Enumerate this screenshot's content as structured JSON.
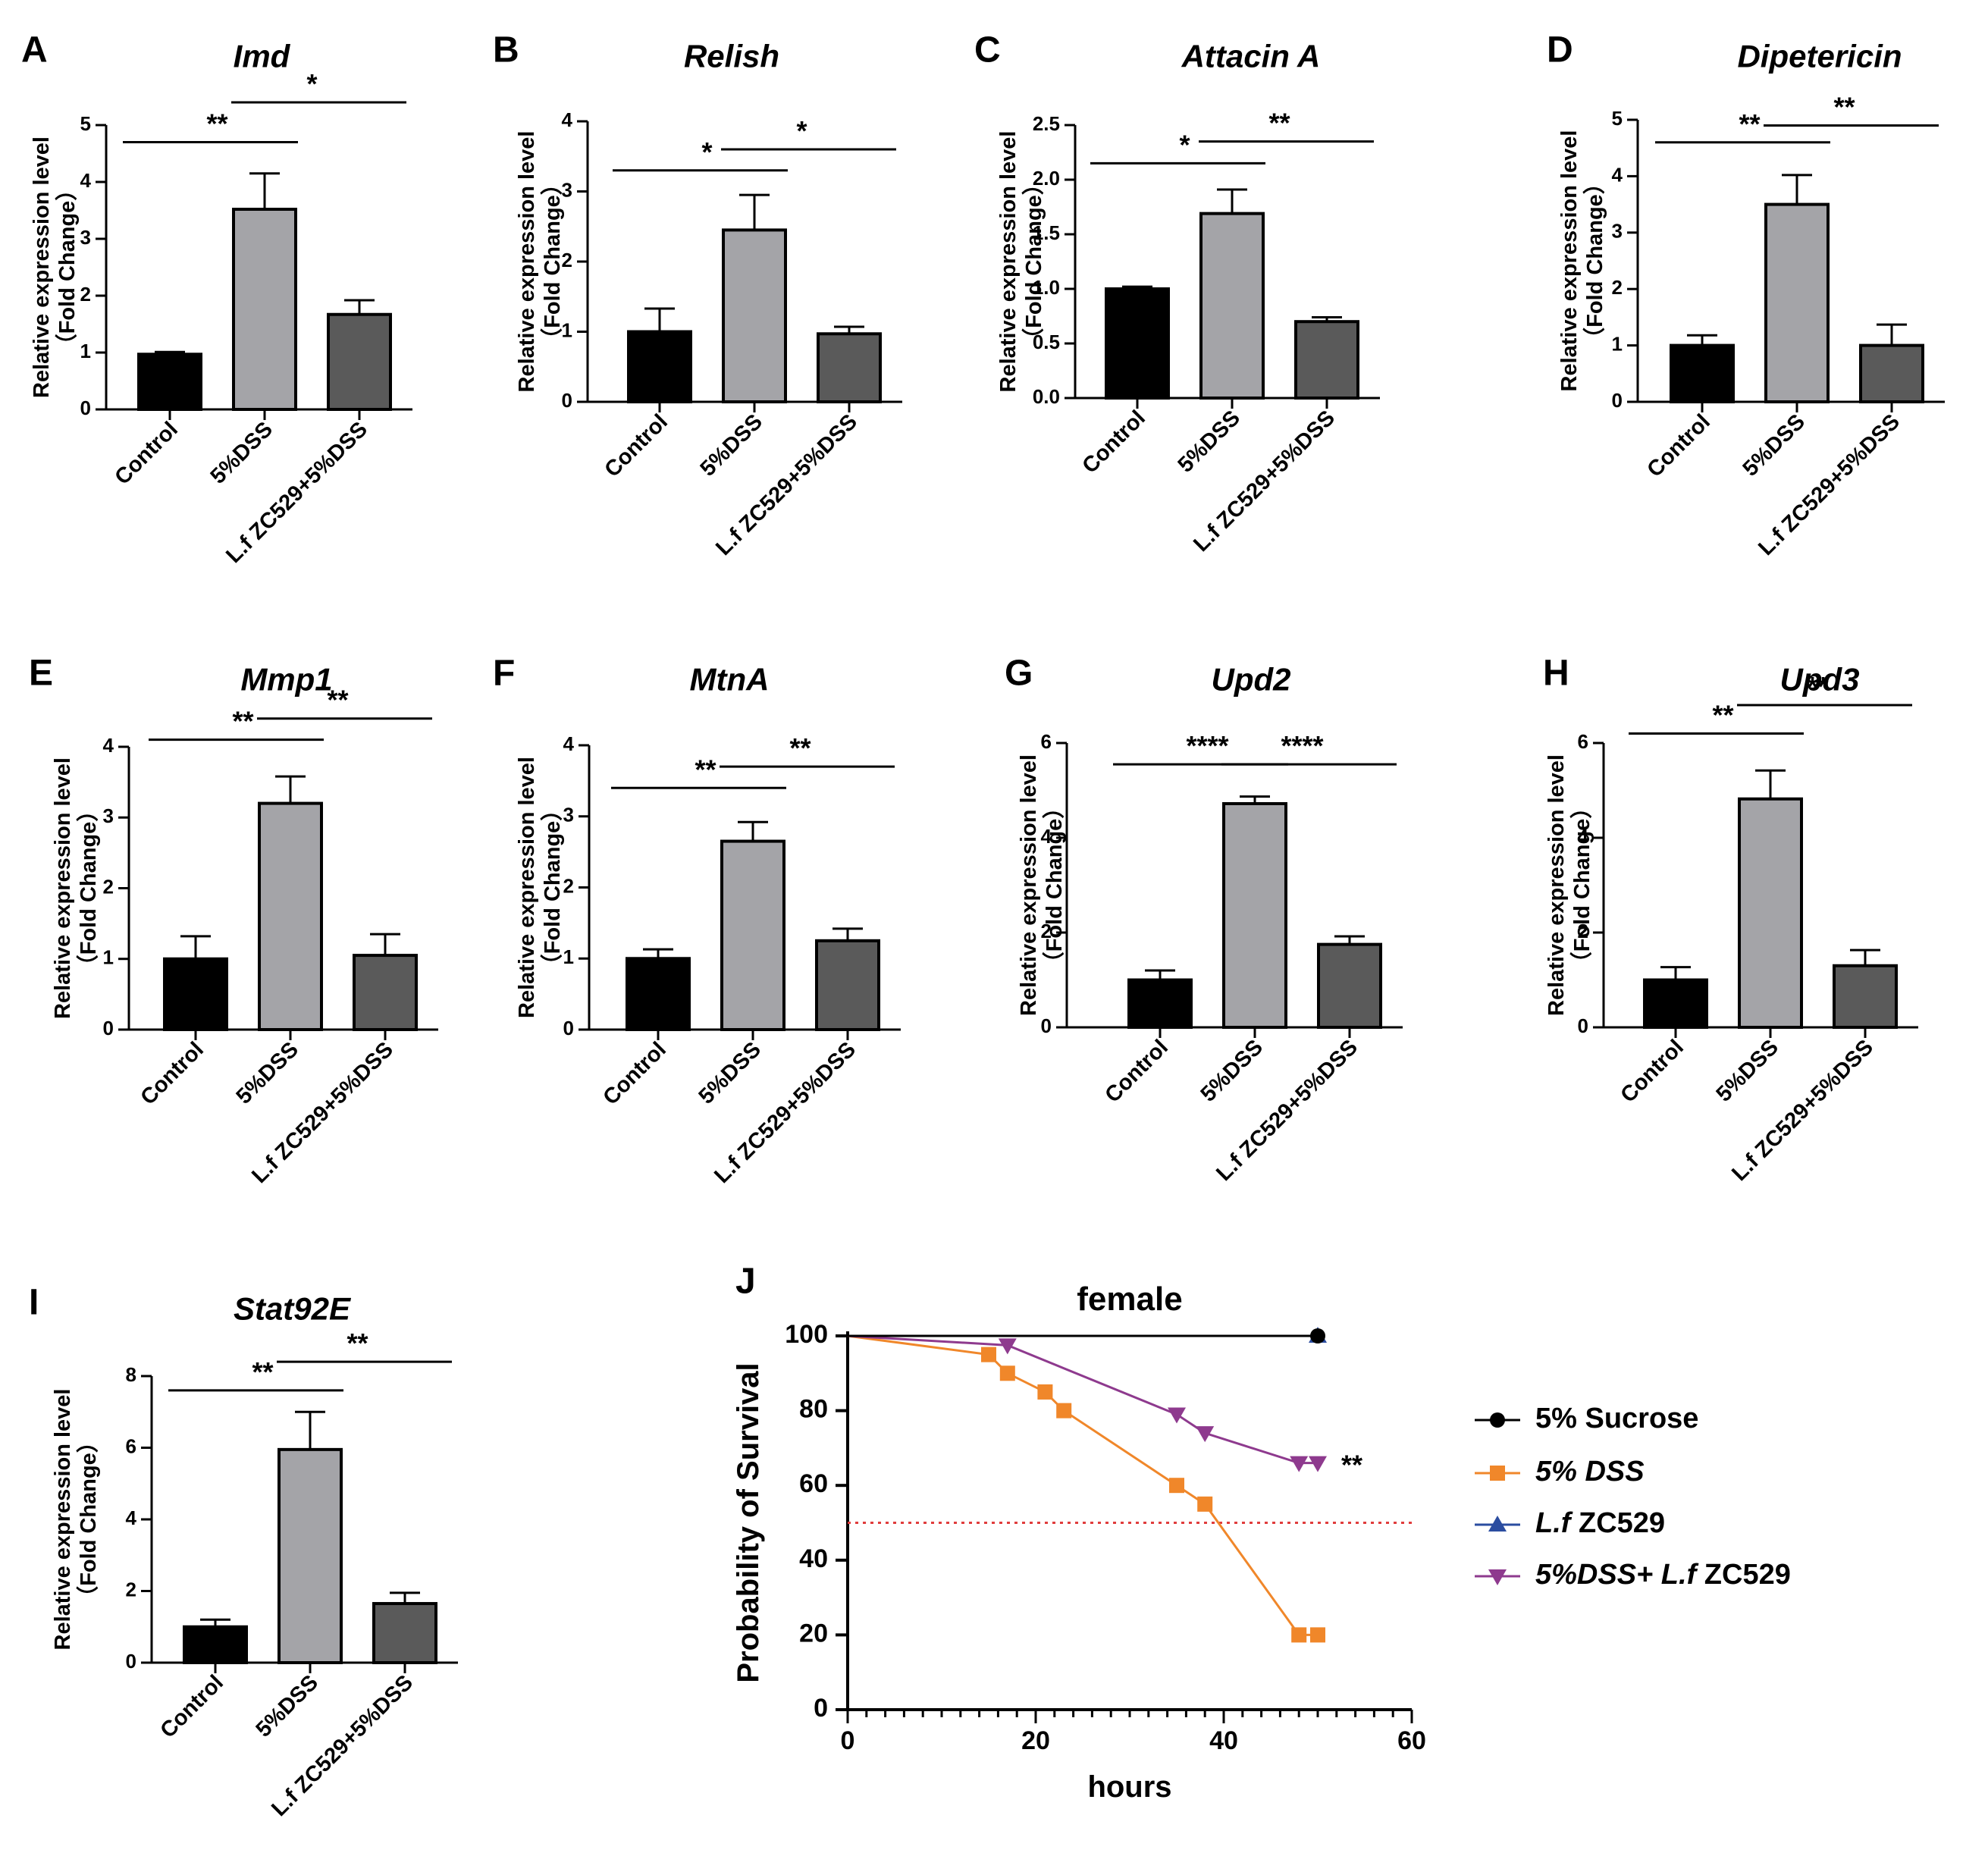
{
  "colors": {
    "control": "#000000",
    "dss": "#a4a4a8",
    "lf_dss": "#5a5a5a",
    "sucrose": "#000000",
    "dss_line": "#f0872a",
    "lf_line": "#2b4da0",
    "lf_dss_line": "#8e3a8e",
    "median": "#e03c3c"
  },
  "chart_data": [
    {
      "type": "bar",
      "panel": "A",
      "title": "Imd",
      "ylabel_line1": "Relative expression level",
      "ylabel_line2": "（Fold Change）",
      "categories": [
        "Control",
        "5%DSS",
        "L.f ZC529+5%DSS"
      ],
      "values": [
        0.97,
        3.52,
        1.67
      ],
      "errors": [
        0.04,
        0.63,
        0.25
      ],
      "ylim": [
        0,
        5
      ],
      "yticks": [
        "0",
        "1",
        "2",
        "3",
        "4",
        "5"
      ],
      "significance": [
        {
          "from": 0,
          "to": 1,
          "label": "**",
          "y": 4.7
        },
        {
          "from": 1,
          "to": 2,
          "label": "*",
          "y": 5.4
        }
      ]
    },
    {
      "type": "bar",
      "panel": "B",
      "title": "Relish",
      "ylabel_line1": "Relative expression level",
      "ylabel_line2": "（Fold Change）",
      "categories": [
        "Control",
        "5%DSS",
        "L.f ZC529+5%DSS"
      ],
      "values": [
        1.0,
        2.45,
        0.97
      ],
      "errors": [
        0.33,
        0.5,
        0.1
      ],
      "ylim": [
        0,
        4
      ],
      "yticks": [
        "0",
        "1",
        "2",
        "3",
        "4"
      ],
      "significance": [
        {
          "from": 0,
          "to": 1,
          "label": "*",
          "y": 3.3
        },
        {
          "from": 1,
          "to": 2,
          "label": "*",
          "y": 3.6
        }
      ]
    },
    {
      "type": "bar",
      "panel": "C",
      "title": "Attacin A",
      "ylabel_line1": "Relative expression level",
      "ylabel_line2": "（Fold Change）",
      "categories": [
        "Control",
        "5%DSS",
        "L.f ZC529+5%DSS"
      ],
      "values": [
        1.0,
        1.69,
        0.7
      ],
      "errors": [
        0.02,
        0.22,
        0.04
      ],
      "ylim": [
        0,
        2.5
      ],
      "yticks": [
        "0.0",
        "0.5",
        "1.0",
        "1.5",
        "2.0",
        "2.5"
      ],
      "significance": [
        {
          "from": 0,
          "to": 1,
          "label": "*",
          "y": 2.15
        },
        {
          "from": 1,
          "to": 2,
          "label": "**",
          "y": 2.35
        }
      ]
    },
    {
      "type": "bar",
      "panel": "D",
      "title": "Dipetericin",
      "ylabel_line1": "Relative expression level",
      "ylabel_line2": "（Fold Change）",
      "categories": [
        "Control",
        "5%DSS",
        "L.f ZC529+5%DSS"
      ],
      "values": [
        1.0,
        3.5,
        1.0
      ],
      "errors": [
        0.18,
        0.52,
        0.37
      ],
      "ylim": [
        0,
        5
      ],
      "yticks": [
        "0",
        "1",
        "2",
        "3",
        "4",
        "5"
      ],
      "significance": [
        {
          "from": 0,
          "to": 1,
          "label": "**",
          "y": 4.6
        },
        {
          "from": 1,
          "to": 2,
          "label": "**",
          "y": 4.9
        }
      ]
    },
    {
      "type": "bar",
      "panel": "E",
      "title": "Mmp1",
      "ylabel_line1": "Relative expression level",
      "ylabel_line2": "（Fold Change）",
      "categories": [
        "Control",
        "5%DSS",
        "L.f ZC529+5%DSS"
      ],
      "values": [
        1.0,
        3.2,
        1.05
      ],
      "errors": [
        0.32,
        0.38,
        0.3
      ],
      "ylim": [
        0,
        4
      ],
      "yticks": [
        "0",
        "1",
        "2",
        "3",
        "4"
      ],
      "significance": [
        {
          "from": 0,
          "to": 1,
          "label": "**",
          "y": 4.1
        },
        {
          "from": 1,
          "to": 2,
          "label": "**",
          "y": 4.4
        }
      ]
    },
    {
      "type": "bar",
      "panel": "F",
      "title": "MtnA",
      "ylabel_line1": "Relative expression level",
      "ylabel_line2": "（Fold Change）",
      "categories": [
        "Control",
        "5%DSS",
        "L.f ZC529+5%DSS"
      ],
      "values": [
        1.0,
        2.65,
        1.25
      ],
      "errors": [
        0.13,
        0.27,
        0.17
      ],
      "ylim": [
        0,
        4
      ],
      "yticks": [
        "0",
        "1",
        "2",
        "3",
        "4"
      ],
      "significance": [
        {
          "from": 0,
          "to": 1,
          "label": "**",
          "y": 3.4
        },
        {
          "from": 1,
          "to": 2,
          "label": "**",
          "y": 3.7
        }
      ]
    },
    {
      "type": "bar",
      "panel": "G",
      "title": "Upd2",
      "ylabel_line1": "Relative expression level",
      "ylabel_line2": "（Fold Change）",
      "categories": [
        "Control",
        "5%DSS",
        "L.f ZC529+5%DSS"
      ],
      "values": [
        1.0,
        4.72,
        1.75
      ],
      "errors": [
        0.2,
        0.15,
        0.17
      ],
      "ylim": [
        0,
        6
      ],
      "yticks": [
        "0",
        "2",
        "4",
        "6"
      ],
      "significance": [
        {
          "from": 0,
          "to": 1,
          "label": "****",
          "y": 5.55
        },
        {
          "from": 1,
          "to": 2,
          "label": "****",
          "y": 5.55
        }
      ]
    },
    {
      "type": "bar",
      "panel": "H",
      "title": "Upd3",
      "ylabel_line1": "Relative expression level",
      "ylabel_line2": "（Fold Change）",
      "categories": [
        "Control",
        "5%DSS",
        "L.f ZC529+5%DSS"
      ],
      "values": [
        1.0,
        4.82,
        1.3
      ],
      "errors": [
        0.27,
        0.6,
        0.33
      ],
      "ylim": [
        0,
        6
      ],
      "yticks": [
        "0",
        "2",
        "4",
        "6"
      ],
      "significance": [
        {
          "from": 0,
          "to": 1,
          "label": "**",
          "y": 6.2
        },
        {
          "from": 1,
          "to": 2,
          "label": "**",
          "y": 6.8
        }
      ]
    },
    {
      "type": "bar",
      "panel": "I",
      "title": "Stat92E",
      "ylabel_line1": "Relative expression level",
      "ylabel_line2": "（Fold Change）",
      "categories": [
        "Control",
        "5%DSS",
        "L.f ZC529+5%DSS"
      ],
      "values": [
        1.0,
        5.95,
        1.65
      ],
      "errors": [
        0.2,
        1.05,
        0.3
      ],
      "ylim": [
        0,
        8
      ],
      "yticks": [
        "0",
        "2",
        "4",
        "6",
        "8"
      ],
      "significance": [
        {
          "from": 0,
          "to": 1,
          "label": "**",
          "y": 7.6
        },
        {
          "from": 1,
          "to": 2,
          "label": "**",
          "y": 8.4
        }
      ]
    },
    {
      "type": "line",
      "panel": "J",
      "title": "female",
      "xlabel": "hours",
      "ylabel": "Probability of Survival",
      "xlim": [
        0,
        60
      ],
      "ylim": [
        0,
        100
      ],
      "xticks": [
        "0",
        "20",
        "40",
        "60"
      ],
      "yticks": [
        "0",
        "20",
        "40",
        "60",
        "80",
        "100"
      ],
      "median_line": 50,
      "series": [
        {
          "name": "5% Sucrose",
          "key": "sucrose",
          "marker": "circle",
          "x": [
            0,
            50
          ],
          "y": [
            100,
            100
          ],
          "marked": [
            50
          ]
        },
        {
          "name": "5% DSS",
          "key": "dss_line",
          "marker": "square",
          "x": [
            0,
            15,
            17,
            21,
            23,
            35,
            38,
            48,
            50
          ],
          "y": [
            100,
            95,
            90,
            85,
            80,
            60,
            55,
            20,
            20
          ],
          "marked": [
            15,
            17,
            21,
            23,
            35,
            38,
            48,
            50
          ]
        },
        {
          "name": "L.f ZC529",
          "key": "lf_line",
          "marker": "triangle-up",
          "x": [
            0,
            50
          ],
          "y": [
            100,
            100
          ],
          "marked": [
            50
          ]
        },
        {
          "name": "5%DSS+ L.f ZC529",
          "key": "lf_dss_line",
          "marker": "triangle-down",
          "x": [
            0,
            17,
            35,
            38,
            48,
            50
          ],
          "y": [
            100,
            97.5,
            79,
            74,
            66,
            66
          ],
          "marked": [
            17,
            35,
            38,
            48,
            50
          ]
        }
      ],
      "annotation": "**",
      "legend": [
        {
          "italic": "",
          "plain": "5% Sucrose"
        },
        {
          "italic": "5% DSS",
          "plain": ""
        },
        {
          "italic": "L.f",
          "plain": " ZC529"
        },
        {
          "italic": "5%DSS+ L.f",
          "plain": " ZC529"
        }
      ]
    }
  ]
}
